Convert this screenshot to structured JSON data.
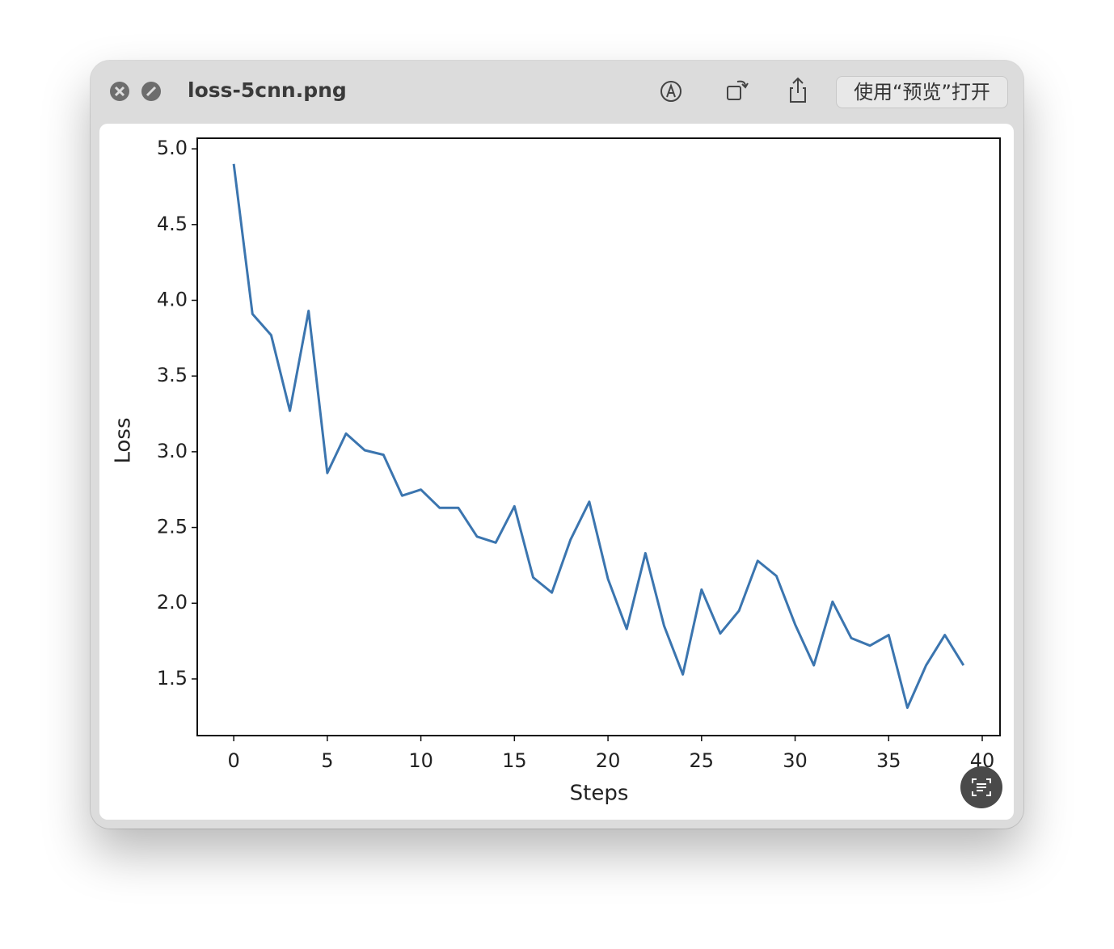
{
  "window": {
    "title": "loss-5cnn.png",
    "open_button": "使用“预览”打开"
  },
  "chart_data": {
    "type": "line",
    "xlabel": "Steps",
    "ylabel": "Loss",
    "x": [
      0,
      1,
      2,
      3,
      4,
      5,
      6,
      7,
      8,
      9,
      10,
      11,
      12,
      13,
      14,
      15,
      16,
      17,
      18,
      19,
      20,
      21,
      22,
      23,
      24,
      25,
      26,
      27,
      28,
      29,
      30,
      31,
      32,
      33,
      34,
      35,
      36,
      37,
      38,
      39
    ],
    "values": [
      4.9,
      3.91,
      3.77,
      3.27,
      3.93,
      2.86,
      3.12,
      3.01,
      2.98,
      2.71,
      2.75,
      2.63,
      2.63,
      2.44,
      2.4,
      2.64,
      2.17,
      2.07,
      2.42,
      2.67,
      2.16,
      1.83,
      2.33,
      1.85,
      1.53,
      2.09,
      1.8,
      1.95,
      2.28,
      2.18,
      1.86,
      1.59,
      2.01,
      1.77,
      1.72,
      1.79,
      1.31,
      1.59,
      1.79,
      1.59
    ],
    "color": "#3b75af",
    "xlim": [
      -1.95,
      40.95
    ],
    "xticks": [
      0,
      5,
      10,
      15,
      20,
      25,
      30,
      35,
      40
    ],
    "ylim": [
      1.126,
      5.07
    ],
    "yticks": [
      1.5,
      {
        "value": 2,
        "label": "2.0"
      },
      2.5,
      {
        "value": 3,
        "label": "3.0"
      },
      3.5,
      {
        "value": 4,
        "label": "4.0"
      },
      4.5,
      {
        "value": 5,
        "label": "5.0"
      }
    ],
    "grid": false
  }
}
